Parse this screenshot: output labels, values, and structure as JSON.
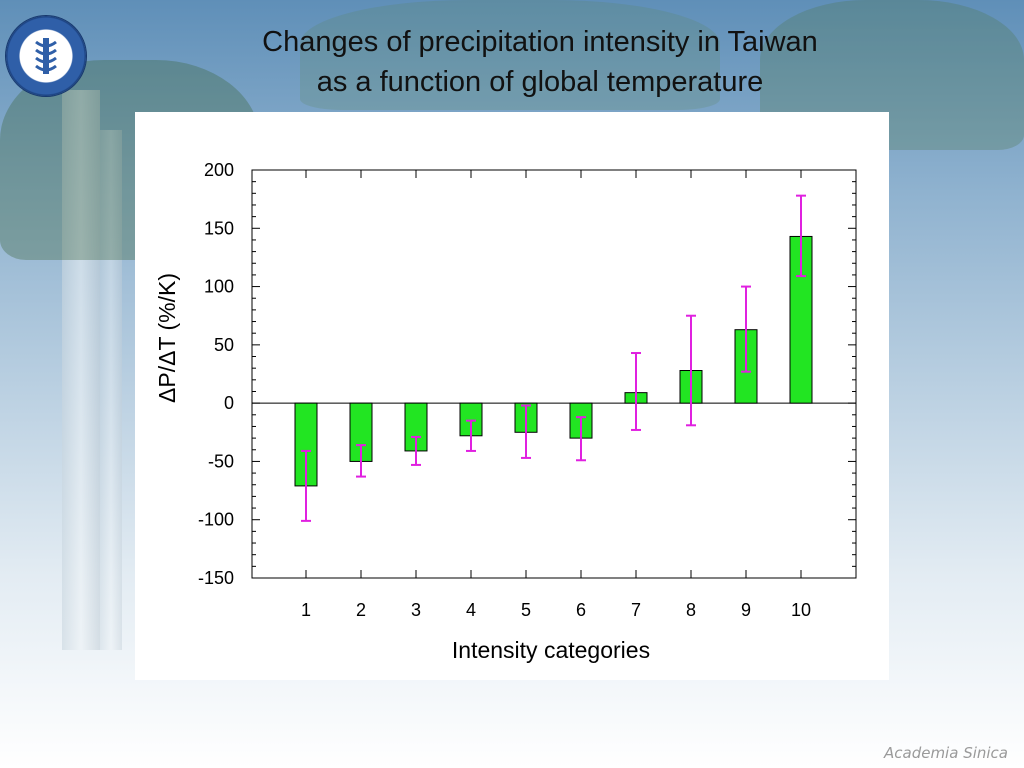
{
  "slide": {
    "title_line1": "Changes of precipitation intensity in Taiwan",
    "title_line2": "as a function of global temperature",
    "logo_text": "ACADEMIA SINICA",
    "footer_brand": "Academia Sinica"
  },
  "colors": {
    "bar_fill": "#22e522",
    "bar_stroke": "#000000",
    "error_bar": "#e020e0",
    "axis": "#000000"
  },
  "chart_data": {
    "type": "bar",
    "title": "",
    "xlabel": "Intensity categories",
    "ylabel": "ΔP/ΔT (%/K)",
    "categories": [
      "1",
      "2",
      "3",
      "4",
      "5",
      "6",
      "7",
      "8",
      "9",
      "10"
    ],
    "values": [
      -71,
      -50,
      -41,
      -28,
      -25,
      -30,
      9,
      28,
      63,
      143
    ],
    "error_low": [
      -101,
      -63,
      -53,
      -41,
      -47,
      -49,
      -23,
      -19,
      27,
      109
    ],
    "error_high": [
      -41,
      -36,
      -29,
      -15,
      -2,
      -12,
      43,
      75,
      100,
      178
    ],
    "ylim": [
      -150,
      200
    ],
    "yticks": [
      200,
      150,
      100,
      50,
      0,
      -50,
      -100,
      -150
    ],
    "grid": false,
    "legend": "none"
  }
}
